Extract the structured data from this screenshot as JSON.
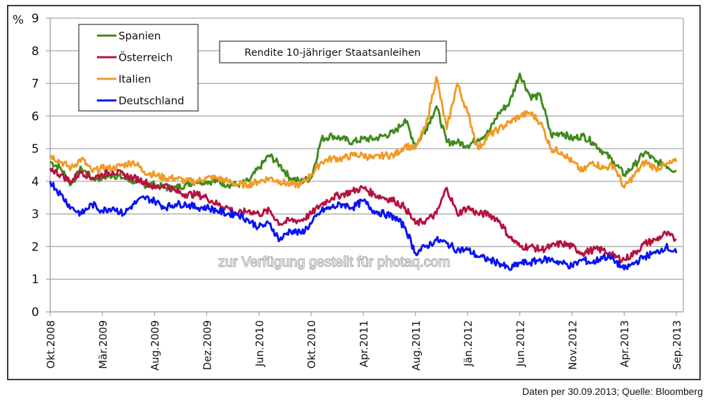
{
  "chart_data": {
    "type": "line",
    "title": "Rendite 10-jähriger Staatsanleihen",
    "ylabel": "%",
    "xlabel": "",
    "ylim": [
      0,
      9
    ],
    "yticks": [
      "0",
      "1",
      "2",
      "3",
      "4",
      "5",
      "6",
      "7",
      "8",
      "9"
    ],
    "grid": true,
    "legend_position": "top-left",
    "categories": [
      "Okt.2008",
      "Mär.2009",
      "Aug.2009",
      "Dez.2009",
      "Jun.2010",
      "Okt.2010",
      "Apr.2011",
      "Aug.2011",
      "Jän.2012",
      "Jun.2012",
      "Nov.2012",
      "Apr.2013",
      "Sep.2013"
    ],
    "x_note": "x values are positions in tick-index units (0 = Okt.2008, 12 = Sep.2013)",
    "series": [
      {
        "name": "Spanien",
        "color": "#3f8a1c",
        "x": [
          0,
          0.2,
          0.4,
          0.6,
          0.8,
          1.0,
          1.2,
          1.4,
          1.6,
          1.8,
          2.0,
          2.2,
          2.4,
          2.6,
          2.8,
          3.0,
          3.2,
          3.4,
          3.6,
          3.8,
          4.0,
          4.2,
          4.4,
          4.6,
          4.8,
          5.0,
          5.2,
          5.4,
          5.6,
          5.8,
          6.0,
          6.2,
          6.4,
          6.6,
          6.8,
          7.0,
          7.2,
          7.4,
          7.6,
          7.8,
          8.0,
          8.2,
          8.4,
          8.6,
          8.8,
          9.0,
          9.2,
          9.4,
          9.6,
          9.8,
          10.0,
          10.2,
          10.4,
          10.6,
          10.8,
          11.0,
          11.2,
          11.4,
          11.6,
          11.8,
          12.0
        ],
        "values": [
          4.6,
          4.4,
          3.9,
          4.4,
          4.1,
          4.1,
          4.2,
          4.1,
          4.0,
          3.9,
          3.9,
          3.8,
          3.8,
          3.9,
          4.0,
          4.0,
          4.0,
          3.9,
          3.9,
          4.0,
          4.4,
          4.8,
          4.5,
          4.1,
          4.0,
          4.1,
          5.3,
          5.4,
          5.3,
          5.2,
          5.3,
          5.3,
          5.4,
          5.5,
          5.9,
          5.1,
          5.6,
          6.3,
          5.2,
          5.2,
          5.1,
          5.3,
          5.5,
          6.1,
          6.4,
          7.3,
          6.6,
          6.6,
          5.4,
          5.5,
          5.3,
          5.4,
          5.2,
          4.9,
          4.6,
          4.2,
          4.5,
          4.9,
          4.6,
          4.5,
          4.3
        ]
      },
      {
        "name": "Österreich",
        "color": "#b5123f",
        "x": [
          0,
          0.2,
          0.4,
          0.6,
          0.8,
          1.0,
          1.2,
          1.4,
          1.6,
          1.8,
          2.0,
          2.2,
          2.4,
          2.6,
          2.8,
          3.0,
          3.2,
          3.4,
          3.6,
          3.8,
          4.0,
          4.2,
          4.4,
          4.6,
          4.8,
          5.0,
          5.2,
          5.4,
          5.6,
          5.8,
          6.0,
          6.2,
          6.4,
          6.6,
          6.8,
          7.0,
          7.2,
          7.4,
          7.6,
          7.8,
          8.0,
          8.2,
          8.4,
          8.6,
          8.8,
          9.0,
          9.2,
          9.4,
          9.6,
          9.8,
          10.0,
          10.2,
          10.4,
          10.6,
          10.8,
          11.0,
          11.2,
          11.4,
          11.6,
          11.8,
          12.0
        ],
        "values": [
          4.4,
          4.2,
          4.0,
          4.3,
          4.1,
          4.2,
          4.3,
          4.2,
          4.1,
          4.0,
          3.8,
          3.9,
          3.7,
          3.6,
          3.6,
          3.5,
          3.3,
          3.2,
          3.0,
          3.1,
          3.0,
          3.1,
          2.7,
          2.8,
          2.8,
          3.0,
          3.3,
          3.5,
          3.6,
          3.7,
          3.8,
          3.6,
          3.5,
          3.4,
          3.2,
          2.7,
          2.8,
          3.0,
          3.8,
          3.0,
          3.2,
          3.0,
          3.0,
          2.8,
          2.3,
          2.0,
          2.0,
          1.9,
          2.0,
          2.1,
          2.0,
          1.8,
          1.9,
          1.9,
          1.7,
          1.6,
          1.8,
          2.1,
          2.2,
          2.4,
          2.2
        ]
      },
      {
        "name": "Italien",
        "color": "#f19a27",
        "x": [
          0,
          0.2,
          0.4,
          0.6,
          0.8,
          1.0,
          1.2,
          1.4,
          1.6,
          1.8,
          2.0,
          2.2,
          2.4,
          2.6,
          2.8,
          3.0,
          3.2,
          3.4,
          3.6,
          3.8,
          4.0,
          4.2,
          4.4,
          4.6,
          4.8,
          5.0,
          5.2,
          5.4,
          5.6,
          5.8,
          6.0,
          6.2,
          6.4,
          6.6,
          6.8,
          7.0,
          7.2,
          7.4,
          7.6,
          7.8,
          8.0,
          8.2,
          8.4,
          8.6,
          8.8,
          9.0,
          9.2,
          9.4,
          9.6,
          9.8,
          10.0,
          10.2,
          10.4,
          10.6,
          10.8,
          11.0,
          11.2,
          11.4,
          11.6,
          11.8,
          12.0
        ],
        "values": [
          4.8,
          4.6,
          4.4,
          4.7,
          4.3,
          4.4,
          4.4,
          4.5,
          4.6,
          4.3,
          4.2,
          4.1,
          4.1,
          4.0,
          4.0,
          4.1,
          4.1,
          4.0,
          3.9,
          3.9,
          4.0,
          4.1,
          4.0,
          3.9,
          3.9,
          4.2,
          4.6,
          4.7,
          4.7,
          4.8,
          4.8,
          4.7,
          4.8,
          4.8,
          5.1,
          5.0,
          5.7,
          7.2,
          5.6,
          7.0,
          6.1,
          5.0,
          5.4,
          5.6,
          5.8,
          6.0,
          6.1,
          5.8,
          5.0,
          4.9,
          4.6,
          4.3,
          4.6,
          4.4,
          4.5,
          3.8,
          4.2,
          4.6,
          4.4,
          4.5,
          4.6
        ]
      },
      {
        "name": "Deutschland",
        "color": "#0a14f0",
        "x": [
          0,
          0.2,
          0.4,
          0.6,
          0.8,
          1.0,
          1.2,
          1.4,
          1.6,
          1.8,
          2.0,
          2.2,
          2.4,
          2.6,
          2.8,
          3.0,
          3.2,
          3.4,
          3.6,
          3.8,
          4.0,
          4.2,
          4.4,
          4.6,
          4.8,
          5.0,
          5.2,
          5.4,
          5.6,
          5.8,
          6.0,
          6.2,
          6.4,
          6.6,
          6.8,
          7.0,
          7.2,
          7.4,
          7.6,
          7.8,
          8.0,
          8.2,
          8.4,
          8.6,
          8.8,
          9.0,
          9.2,
          9.4,
          9.6,
          9.8,
          10.0,
          10.2,
          10.4,
          10.6,
          10.8,
          11.0,
          11.2,
          11.4,
          11.6,
          11.8,
          12.0
        ],
        "values": [
          4.0,
          3.6,
          3.2,
          3.0,
          3.3,
          3.1,
          3.2,
          3.0,
          3.3,
          3.5,
          3.4,
          3.2,
          3.3,
          3.3,
          3.2,
          3.2,
          3.1,
          3.0,
          3.0,
          2.8,
          2.6,
          2.7,
          2.2,
          2.5,
          2.4,
          2.7,
          3.1,
          3.2,
          3.3,
          3.2,
          3.4,
          3.1,
          3.0,
          2.9,
          2.6,
          1.8,
          2.0,
          2.2,
          2.1,
          1.9,
          1.9,
          1.7,
          1.6,
          1.5,
          1.3,
          1.5,
          1.5,
          1.6,
          1.6,
          1.5,
          1.4,
          1.6,
          1.5,
          1.7,
          1.6,
          1.3,
          1.5,
          1.7,
          1.8,
          2.0,
          1.8
        ]
      }
    ]
  },
  "legend": {
    "items": [
      "Spanien",
      "Österreich",
      "Italien",
      "Deutschland"
    ]
  },
  "title_box": "Rendite 10-jähriger Staatsanleihen",
  "watermark": "zur Verfügung gestellt für photaq.com",
  "source_note": "Daten per 30.09.2013; Quelle: Bloomberg",
  "colors": {
    "grid": "#a8a8a8",
    "frame": "#3a3a3a"
  }
}
